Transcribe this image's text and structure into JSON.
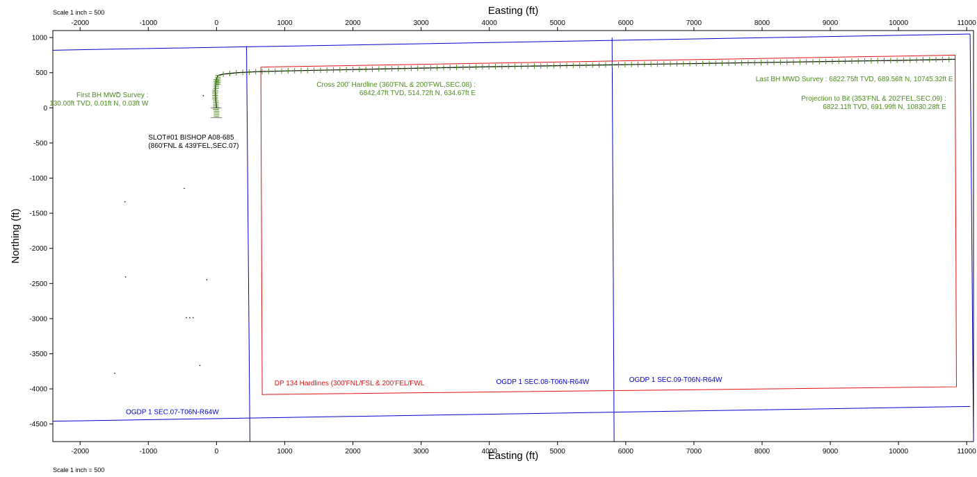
{
  "scale_note_top": "Scale 1 inch = 500",
  "scale_note_bottom": "Scale 1 inch = 500",
  "chart_data": {
    "type": "scatter",
    "title": "",
    "xlabel": "Easting (ft)",
    "ylabel": "Northing (ft)",
    "xlim": [
      -2400,
      11100
    ],
    "ylim": [
      -4750,
      1100
    ],
    "xticks": [
      -2000,
      -1000,
      0,
      1000,
      2000,
      3000,
      4000,
      5000,
      6000,
      7000,
      8000,
      9000,
      10000,
      11000
    ],
    "yticks": [
      1000,
      500,
      0,
      -500,
      -1000,
      -1500,
      -2000,
      -2500,
      -3000,
      -3500,
      -4000,
      -4500
    ],
    "grid": false,
    "colors": {
      "sections": "#0000cc",
      "hardlines": "#e01010",
      "wellpath": "#4a8a1c",
      "plan": "#000000"
    },
    "section_lines": [
      {
        "x": [
          -2400,
          11050
        ],
        "y": [
          820,
          1050
        ]
      },
      {
        "x": [
          -2400,
          11050
        ],
        "y": [
          -4460,
          -4250
        ]
      },
      {
        "x": [
          440,
          490
        ],
        "y": [
          880,
          -4750
        ]
      },
      {
        "x": [
          5800,
          5830
        ],
        "y": [
          1000,
          -4750
        ]
      },
      {
        "x": [
          11050,
          11100
        ],
        "y": [
          1050,
          -4750
        ]
      }
    ],
    "hardline_polygon": {
      "x": [
        650,
        10830,
        10850,
        670,
        650
      ],
      "y": [
        580,
        750,
        -3970,
        -4080,
        580
      ]
    },
    "well_path": {
      "name": "",
      "x": [
        0,
        -10,
        -20,
        -5,
        20,
        100,
        300,
        600,
        1000,
        2000,
        3000,
        4000,
        5000,
        6000,
        7000,
        8000,
        9000,
        10000,
        10745,
        10830
      ],
      "y": [
        0,
        100,
        250,
        400,
        460,
        480,
        500,
        515,
        525,
        545,
        565,
        585,
        600,
        615,
        630,
        645,
        660,
        675,
        690,
        692
      ]
    },
    "isolated_marks": [
      {
        "x": -1450,
        "y": 220
      },
      {
        "x": -200,
        "y": 180
      },
      {
        "x": -1350,
        "y": -1330
      },
      {
        "x": -480,
        "y": -1140
      },
      {
        "x": -1340,
        "y": -2400
      },
      {
        "x": -150,
        "y": -2440
      },
      {
        "x": -450,
        "y": -2980
      },
      {
        "x": -400,
        "y": -2980
      },
      {
        "x": -350,
        "y": -2980
      },
      {
        "x": -1500,
        "y": -3770
      },
      {
        "x": -250,
        "y": -3660
      }
    ],
    "annotations": [
      {
        "id": "first-bh-survey",
        "color": "#4a8a1c",
        "x": -1000,
        "y": 150,
        "anchor": "end",
        "lines": [
          "First BH MWD Survey :",
          "130.00ft TVD, 0.01ft N, 0.03ft W"
        ]
      },
      {
        "id": "slot-label",
        "color": "#000000",
        "x": -1000,
        "y": -450,
        "anchor": "start",
        "lines": [
          "SLOT#01 BISHOP A08-685",
          "(860'FNL & 439'FEL,SEC.07)"
        ]
      },
      {
        "id": "cross-hardline",
        "color": "#4a8a1c",
        "x": 3800,
        "y": 300,
        "anchor": "end",
        "lines": [
          "Cross 200' Hardline (360'FNL & 200'FWL,SEC.08) :",
          "6842.47ft TVD, 514.72ft N, 634.67ft E"
        ]
      },
      {
        "id": "last-bh-survey",
        "color": "#4a8a1c",
        "x": 10800,
        "y": 380,
        "anchor": "end",
        "lines": [
          "Last BH MWD Survey : 6822.75ft TVD, 689.56ft N, 10745.32ft E"
        ]
      },
      {
        "id": "projection-to-bit",
        "color": "#4a8a1c",
        "x": 10700,
        "y": 100,
        "anchor": "end",
        "lines": [
          "Projection to Bit (353'FNL & 202'FEL,SEC.09) :",
          "6822.11ft TVD, 691.99ft N, 10830.28ft E"
        ]
      },
      {
        "id": "dp-hardlines",
        "color": "#e01010",
        "x": 850,
        "y": -3950,
        "anchor": "start",
        "lines": [
          "DP 134 Hardlines (300'FNL/FSL & 200'FEL/FWL"
        ]
      },
      {
        "id": "sec08-label",
        "color": "#0000cc",
        "x": 4100,
        "y": -3930,
        "anchor": "start",
        "lines": [
          "OGDP 1 SEC.08-T06N-R64W"
        ]
      },
      {
        "id": "sec09-label",
        "color": "#0000cc",
        "x": 6050,
        "y": -3900,
        "anchor": "start",
        "lines": [
          "OGDP 1 SEC.09-T06N-R64W"
        ]
      },
      {
        "id": "sec07-label",
        "color": "#0000cc",
        "x": -1330,
        "y": -4360,
        "anchor": "start",
        "lines": [
          "OGDP 1 SEC.07-T06N-R64W"
        ]
      }
    ]
  }
}
